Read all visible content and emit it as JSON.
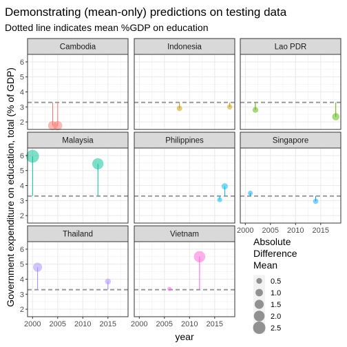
{
  "chart_data": {
    "type": "scatter",
    "title": "Demonstrating (mean-only) predictions on testing data",
    "subtitle": "Dotted line indicates mean %GDP on education",
    "xlabel": "year",
    "ylabel": "Government expenditure on education, total (% of GDP)",
    "xlim": [
      1999,
      2019
    ],
    "ylim": [
      1.5,
      6.5
    ],
    "x_ticks": [
      2000,
      2005,
      2010,
      2015
    ],
    "y_ticks": [
      2,
      3,
      4,
      5,
      6
    ],
    "mean_line": 3.3,
    "legend": {
      "title_lines": [
        "Absolute",
        "Difference",
        "Mean"
      ],
      "sizes": [
        0.5,
        1.0,
        1.5,
        2.0,
        2.5
      ],
      "labels": [
        "0.5",
        "1.0",
        "1.5",
        "2.0",
        "2.5"
      ]
    },
    "panels": [
      {
        "name": "Cambodia",
        "color": "#F8766D",
        "points": [
          {
            "x": 2004,
            "y": 1.75,
            "diff": 1.55
          },
          {
            "x": 2005,
            "y": 1.75,
            "diff": 1.55
          }
        ]
      },
      {
        "name": "Indonesia",
        "color": "#C49A00",
        "points": [
          {
            "x": 2008,
            "y": 2.9,
            "diff": 0.4
          },
          {
            "x": 2018,
            "y": 3.0,
            "diff": 0.3
          }
        ]
      },
      {
        "name": "Lao PDR",
        "color": "#53B400",
        "points": [
          {
            "x": 2002,
            "y": 2.8,
            "diff": 0.5
          },
          {
            "x": 2018,
            "y": 2.35,
            "diff": 0.95
          }
        ]
      },
      {
        "name": "Malaysia",
        "color": "#00C094",
        "points": [
          {
            "x": 2000,
            "y": 5.95,
            "diff": 2.65
          },
          {
            "x": 2013,
            "y": 5.45,
            "diff": 2.15
          }
        ]
      },
      {
        "name": "Philippines",
        "color": "#00B6EB",
        "points": [
          {
            "x": 2016,
            "y": 3.05,
            "diff": 0.25
          },
          {
            "x": 2017,
            "y": 3.95,
            "diff": 0.65
          }
        ]
      },
      {
        "name": "Singapore",
        "color": "#06A4FF",
        "points": [
          {
            "x": 2001,
            "y": 3.5,
            "diff": 0.2
          },
          {
            "x": 2014,
            "y": 2.95,
            "diff": 0.35
          }
        ]
      },
      {
        "name": "Thailand",
        "color": "#A58AFF",
        "points": [
          {
            "x": 2001,
            "y": 4.8,
            "diff": 1.5
          },
          {
            "x": 2015,
            "y": 3.85,
            "diff": 0.55
          }
        ]
      },
      {
        "name": "Vietnam",
        "color": "#FB61D7",
        "points": [
          {
            "x": 2006,
            "y": 3.35,
            "diff": 0.05
          },
          {
            "x": 2012,
            "y": 5.5,
            "diff": 2.2
          }
        ]
      }
    ]
  }
}
